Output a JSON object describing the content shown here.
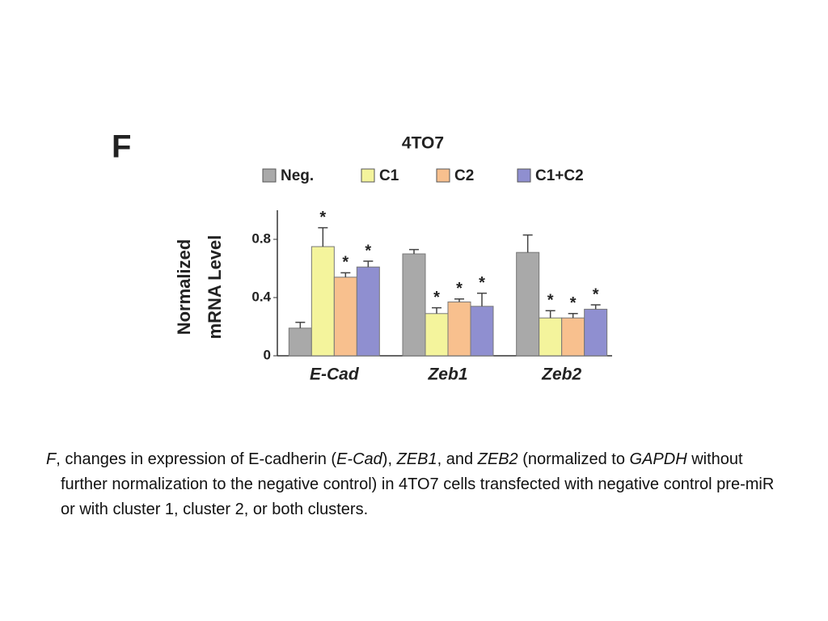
{
  "panel_label": "F",
  "chart_data": {
    "type": "bar",
    "title": "4TO7",
    "ylabel": [
      "Normalized",
      "mRNA Level"
    ],
    "categories": [
      "E-Cad",
      "Zeb1",
      "Zeb2"
    ],
    "ylim": [
      0,
      1.0
    ],
    "yticks": [
      0,
      0.4,
      0.8
    ],
    "series": [
      {
        "name": "Neg.",
        "color": "#a9a9a9",
        "values": [
          0.19,
          0.7,
          0.71
        ],
        "errors": [
          0.04,
          0.03,
          0.12
        ]
      },
      {
        "name": "C1",
        "color": "#f4f49c",
        "values": [
          0.75,
          0.29,
          0.26
        ],
        "errors": [
          0.13,
          0.04,
          0.05
        ],
        "significance": [
          "*",
          "*",
          "*"
        ]
      },
      {
        "name": "C2",
        "color": "#f8c08e",
        "values": [
          0.54,
          0.37,
          0.26
        ],
        "errors": [
          0.03,
          0.02,
          0.03
        ],
        "significance": [
          "*",
          "*",
          "*"
        ]
      },
      {
        "name": "C1+C2",
        "color": "#8f8fd0",
        "values": [
          0.61,
          0.34,
          0.32
        ],
        "errors": [
          0.04,
          0.09,
          0.03
        ],
        "significance": [
          "*",
          "*",
          "*"
        ]
      }
    ]
  },
  "caption": [
    {
      "text": "F",
      "italic": true
    },
    {
      "text": ", changes in expression of E-cadherin ("
    },
    {
      "text": "E-Cad",
      "italic": true
    },
    {
      "text": "), "
    },
    {
      "text": "ZEB1",
      "italic": true
    },
    {
      "text": ", and "
    },
    {
      "text": "ZEB2",
      "italic": true
    },
    {
      "text": " (normalized to "
    },
    {
      "text": "GAPDH",
      "italic": true
    },
    {
      "text": " without further normalization to the negative control) in 4TO7 cells transfected with negative control pre-miR or with cluster 1, cluster 2, or both clusters."
    }
  ]
}
